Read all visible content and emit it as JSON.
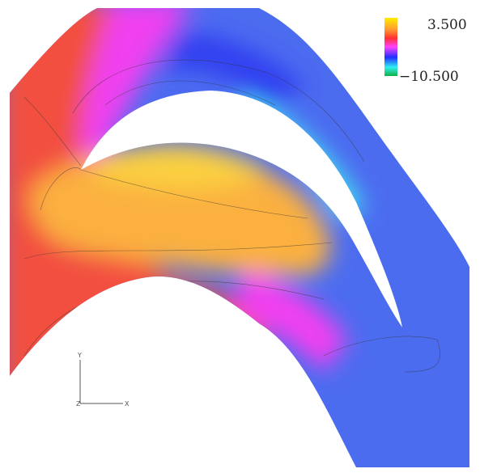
{
  "colorbar": {
    "max_label": "3.500",
    "min_label": "−10.500"
  },
  "axes_triad": {
    "y": "Y",
    "z": "Z",
    "x": "X"
  }
}
